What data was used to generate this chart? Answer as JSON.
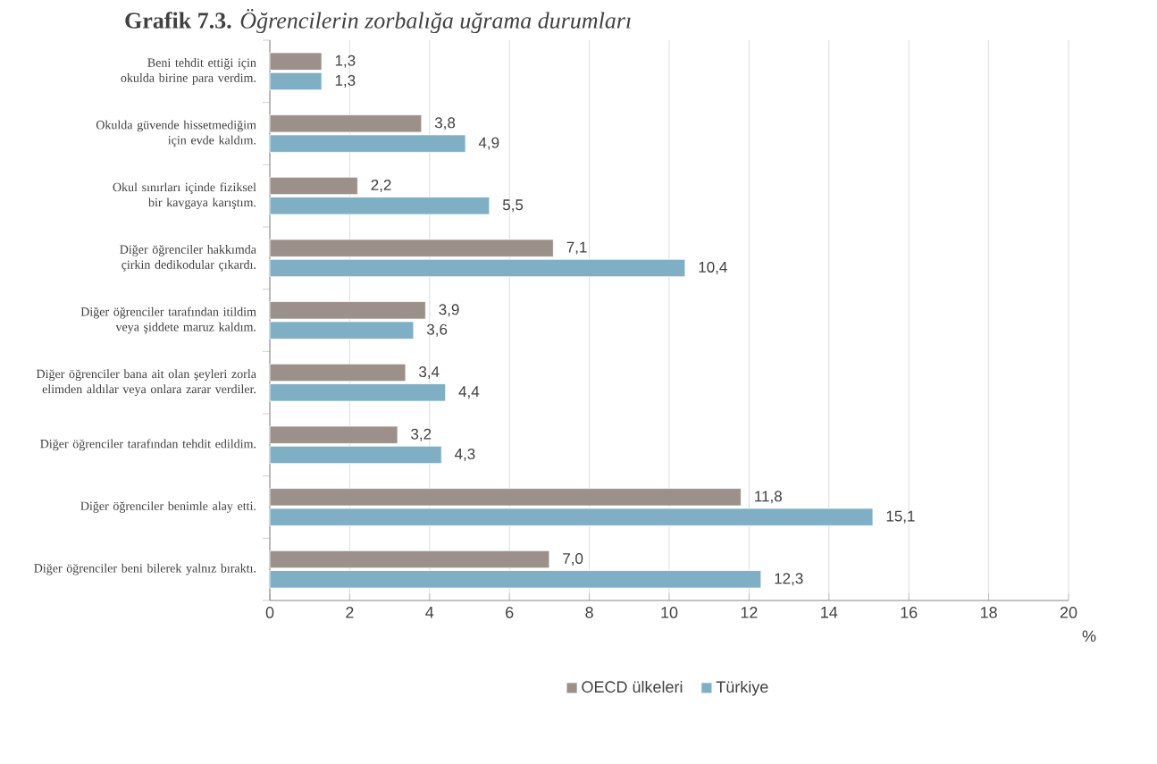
{
  "chart_data": {
    "type": "bar",
    "orientation": "horizontal",
    "title": "**Grafik 7.3.** *Öğrencilerin zorbalığa uğrama durumları*",
    "xlabel": "%",
    "categories": [
      "Beni tehdit ettiği için okulda birine para verdim.",
      "Okulda güvende hissetmediğim için evde kaldım.",
      "Okul sınırları içinde fiziksel bir kavgaya karıştım.",
      "Diğer öğrenciler hakkımda çirkin dedikodular çıkardı.",
      "Diğer öğrenciler tarafından itildim veya şiddete maruz kaldım.",
      "Diğer öğrenciler bana ait olan şeyleri zorla elimden aldılar veya onlara zarar verdiler.",
      "Diğer öğrenciler tarafından tehdit edildim.",
      "Diğer öğrenciler benimle alay etti.",
      "Diğer öğrenciler beni bilerek yalnız bıraktı."
    ],
    "series": [
      {
        "name": "OECD ülkeleri",
        "color": "#9b918a",
        "values": [
          1.3,
          3.8,
          2.2,
          7.1,
          3.9,
          3.4,
          3.2,
          11.8,
          7.0
        ],
        "value_labels": [
          "1,3",
          "3,8",
          "2,2",
          "7,1",
          "3,9",
          "3,4",
          "3,2",
          "11,8",
          "7,0"
        ]
      },
      {
        "name": "Türkiye",
        "color": "#7fafc4",
        "values": [
          1.3,
          4.9,
          5.5,
          10.4,
          3.6,
          4.4,
          4.3,
          15.1,
          12.3
        ],
        "value_labels": [
          "1,3",
          "4,9",
          "5,5",
          "10,4",
          "3,6",
          "4,4",
          "4,3",
          "15,1",
          "12,3"
        ]
      }
    ],
    "xlim": [
      0,
      20
    ],
    "xticks": [
      0,
      2,
      4,
      6,
      8,
      10,
      12,
      14,
      16,
      18,
      20
    ],
    "grid": "x",
    "legend": "bottom"
  }
}
